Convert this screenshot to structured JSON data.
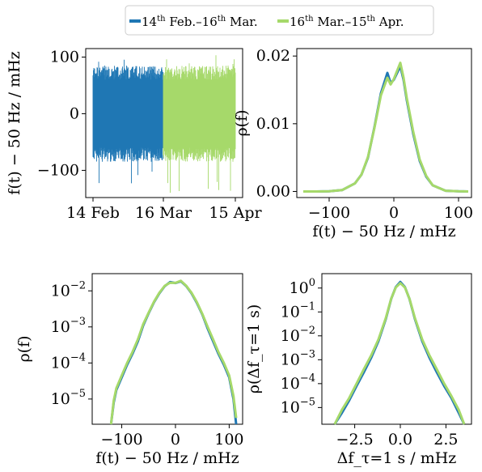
{
  "legend": {
    "entries": [
      {
        "text_a": "14",
        "sup_a": "th",
        "text_b": " Feb.–16",
        "sup_b": "th",
        "text_c": " Mar."
      },
      {
        "text_a": "16",
        "sup_a": "th",
        "text_b": " Mar.–15",
        "sup_b": "th",
        "text_c": " Apr."
      }
    ],
    "colors": [
      "#1f77b4",
      "#a6d96a"
    ]
  },
  "chart_data": [
    {
      "id": "timeseries",
      "type": "line",
      "xlabel": "",
      "ylabel": "f(t) − 50 Hz / mHz",
      "x_ticks": [
        "14 Feb",
        "16 Mar",
        "15 Apr"
      ],
      "y_ticks": [
        100,
        0,
        -100
      ],
      "ylim": [
        -148,
        115
      ],
      "series": [
        {
          "name": "14th Feb.–16th Mar.",
          "x_range": [
            "14 Feb",
            "16 Mar"
          ],
          "typical_range": [
            -60,
            60
          ],
          "extremes": [
            -131,
            98
          ],
          "color": "#1f77b4"
        },
        {
          "name": "16th Mar.–15th Apr.",
          "x_range": [
            "16 Mar",
            "15 Apr"
          ],
          "typical_range": [
            -60,
            60
          ],
          "extremes": [
            -140,
            104
          ],
          "color": "#a6d96a"
        }
      ]
    },
    {
      "id": "pdf-linear",
      "type": "line",
      "xlabel": "f(t) − 50 Hz / mHz",
      "ylabel": "ρ(f)",
      "x_ticks": [
        -100,
        0,
        100
      ],
      "y_ticks": [
        "0.00",
        "0.01",
        "0.02"
      ],
      "xlim": [
        -150,
        120
      ],
      "ylim": [
        -0.0009,
        0.0211
      ],
      "x": [
        -140,
        -120,
        -100,
        -80,
        -60,
        -50,
        -40,
        -30,
        -20,
        -10,
        -5,
        0,
        5,
        10,
        15,
        20,
        30,
        40,
        50,
        60,
        80,
        100,
        115
      ],
      "series": [
        {
          "name": "14th Feb.–16th Mar.",
          "values": [
            0,
            0,
            3e-05,
            0.0002,
            0.0012,
            0.0025,
            0.005,
            0.0095,
            0.0145,
            0.0175,
            0.016,
            0.0165,
            0.0175,
            0.0185,
            0.0165,
            0.0135,
            0.0085,
            0.0045,
            0.0022,
            0.0009,
            0.0001,
            2e-05,
            0
          ]
        },
        {
          "name": "16th Mar.–15th Apr.",
          "values": [
            0,
            0,
            3e-05,
            0.0002,
            0.0012,
            0.0025,
            0.0051,
            0.0094,
            0.0142,
            0.0168,
            0.0158,
            0.0166,
            0.0178,
            0.019,
            0.0168,
            0.0138,
            0.0088,
            0.0047,
            0.0023,
            0.0009,
            0.0001,
            2e-05,
            0
          ]
        }
      ]
    },
    {
      "id": "pdf-log",
      "type": "line",
      "xlabel": "f(t) − 50 Hz / mHz",
      "ylabel": "ρ(f)",
      "x_ticks": [
        -100,
        0,
        100
      ],
      "y_ticks": [
        "10^-2",
        "10^-3",
        "10^-4",
        "10^-5"
      ],
      "yscale": "log",
      "xlim": [
        -155,
        125
      ],
      "ylim": [
        2e-06,
        0.03
      ],
      "x": [
        -120,
        -115,
        -110,
        -100,
        -90,
        -80,
        -70,
        -60,
        -50,
        -40,
        -30,
        -20,
        -10,
        0,
        10,
        20,
        30,
        40,
        50,
        60,
        70,
        80,
        90,
        100,
        108,
        113
      ],
      "series": [
        {
          "name": "14th Feb.–16th Mar.",
          "values": [
            2e-06,
            8e-06,
            1.8e-05,
            4e-05,
            9e-05,
            0.00018,
            0.0004,
            0.0011,
            0.0024,
            0.0048,
            0.0085,
            0.0135,
            0.0175,
            0.0165,
            0.0185,
            0.0135,
            0.0085,
            0.0046,
            0.0022,
            0.0009,
            0.0004,
            0.00018,
            9e-05,
            4e-05,
            1e-05,
            2e-06
          ]
        },
        {
          "name": "16th Mar.–15th Apr.",
          "values": [
            2e-06,
            9e-06,
            2e-05,
            4.5e-05,
            0.0001,
            0.0002,
            0.00045,
            0.0012,
            0.0025,
            0.005,
            0.0088,
            0.0138,
            0.0168,
            0.0166,
            0.019,
            0.0138,
            0.0088,
            0.0048,
            0.0023,
            0.001,
            0.00045,
            0.0002,
            0.0001,
            4.5e-05,
            1.2e-05,
            3e-06
          ]
        }
      ]
    },
    {
      "id": "increment-log",
      "type": "line",
      "xlabel": "Δf_τ=1 s / mHz",
      "ylabel": "ρ(Δf_τ=1 s)",
      "x_ticks": [
        "−2.5",
        "0.0",
        "2.5"
      ],
      "y_ticks": [
        "10^0",
        "10^-1",
        "10^-2",
        "10^-3",
        "10^-4",
        "10^-5"
      ],
      "yscale": "log",
      "xlim": [
        -4.3,
        3.9
      ],
      "ylim": [
        2e-06,
        4
      ],
      "x": [
        -3.6,
        -3.2,
        -2.8,
        -2.4,
        -2.0,
        -1.6,
        -1.2,
        -0.8,
        -0.5,
        -0.25,
        0,
        0.25,
        0.5,
        0.8,
        1.2,
        1.6,
        2.0,
        2.4,
        2.8,
        3.2,
        3.5
      ],
      "series": [
        {
          "name": "14th Feb.–16th Mar.",
          "values": [
            2e-06,
            6e-06,
            2e-05,
            8e-05,
            0.0003,
            0.0012,
            0.006,
            0.05,
            0.35,
            1.1,
            1.8,
            1.1,
            0.35,
            0.05,
            0.006,
            0.0012,
            0.0003,
            8e-05,
            2.5e-05,
            6e-06,
            2e-06
          ]
        },
        {
          "name": "16th Mar.–15th Apr.",
          "values": [
            2e-06,
            8e-06,
            2.5e-05,
            0.0001,
            0.0004,
            0.0015,
            0.007,
            0.055,
            0.36,
            1.05,
            1.6,
            1.05,
            0.36,
            0.055,
            0.007,
            0.0015,
            0.0004,
            0.0001,
            3e-05,
            8e-06,
            2e-06
          ]
        }
      ]
    }
  ]
}
